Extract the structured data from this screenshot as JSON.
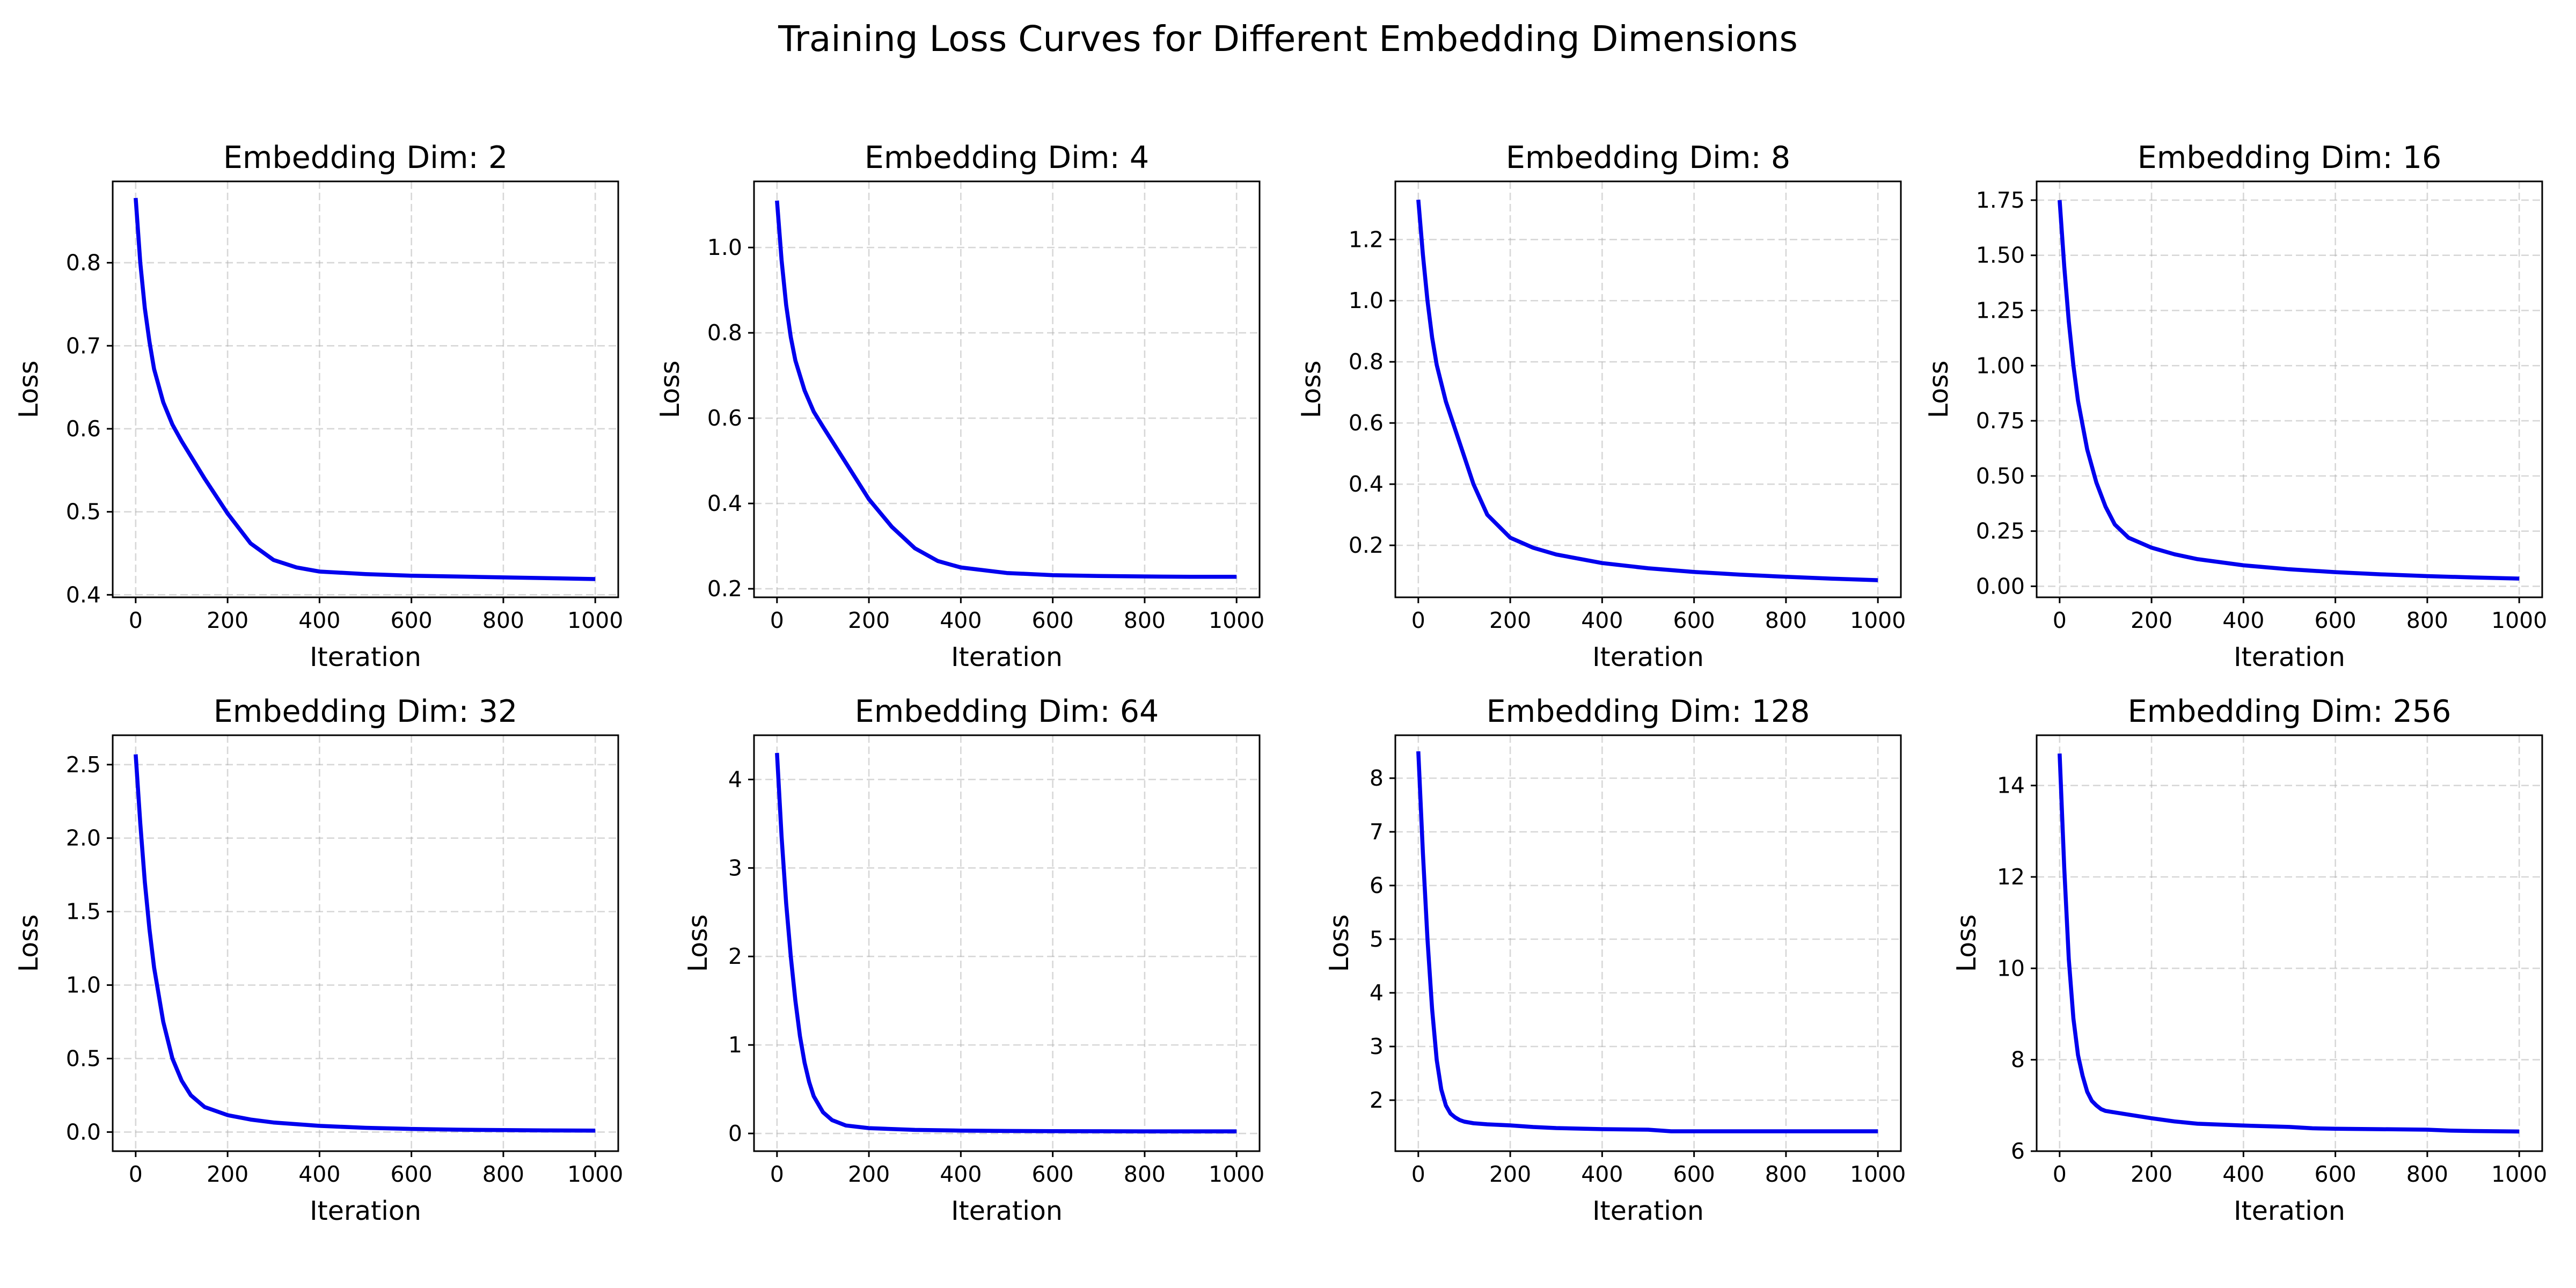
{
  "figure": {
    "title": "Training Loss Curves for Different Embedding Dimensions",
    "line_color": "#0000ee"
  },
  "chart_data": [
    {
      "type": "line",
      "title": "Embedding Dim: 2",
      "xlabel": "Iteration",
      "ylabel": "Loss",
      "xlim": [
        -50,
        1050
      ],
      "ylim": [
        0.397,
        0.898
      ],
      "xticks": [
        0,
        200,
        400,
        600,
        800,
        1000
      ],
      "yticks": [
        0.4,
        0.5,
        0.6,
        0.7,
        0.8
      ],
      "ytick_labels": [
        "0.4",
        "0.5",
        "0.6",
        "0.7",
        "0.8"
      ],
      "grid": true,
      "series": [
        {
          "x": [
            0,
            10,
            20,
            30,
            40,
            60,
            80,
            100,
            150,
            200,
            250,
            300,
            350,
            400,
            500,
            600,
            700,
            800,
            900,
            1000
          ],
          "values": [
            0.878,
            0.8,
            0.745,
            0.705,
            0.672,
            0.632,
            0.605,
            0.585,
            0.54,
            0.498,
            0.462,
            0.442,
            0.433,
            0.428,
            0.425,
            0.423,
            0.422,
            0.421,
            0.42,
            0.419
          ]
        }
      ]
    },
    {
      "type": "line",
      "title": "Embedding Dim: 4",
      "xlabel": "Iteration",
      "ylabel": "Loss",
      "xlim": [
        -50,
        1050
      ],
      "ylim": [
        0.18,
        1.155
      ],
      "xticks": [
        0,
        200,
        400,
        600,
        800,
        1000
      ],
      "yticks": [
        0.2,
        0.4,
        0.6,
        0.8,
        1.0
      ],
      "ytick_labels": [
        "0.2",
        "0.4",
        "0.6",
        "0.8",
        "1.0"
      ],
      "grid": true,
      "series": [
        {
          "x": [
            0,
            10,
            20,
            30,
            40,
            60,
            80,
            100,
            150,
            200,
            250,
            300,
            350,
            400,
            500,
            600,
            700,
            800,
            900,
            1000
          ],
          "values": [
            1.11,
            0.97,
            0.865,
            0.79,
            0.735,
            0.665,
            0.615,
            0.58,
            0.495,
            0.41,
            0.345,
            0.295,
            0.265,
            0.25,
            0.237,
            0.232,
            0.23,
            0.229,
            0.228,
            0.228
          ]
        }
      ]
    },
    {
      "type": "line",
      "title": "Embedding Dim: 8",
      "xlabel": "Iteration",
      "ylabel": "Loss",
      "xlim": [
        -50,
        1050
      ],
      "ylim": [
        0.03,
        1.39
      ],
      "xticks": [
        0,
        200,
        400,
        600,
        800,
        1000
      ],
      "yticks": [
        0.2,
        0.4,
        0.6,
        0.8,
        1.0,
        1.2
      ],
      "ytick_labels": [
        "0.2",
        "0.4",
        "0.6",
        "0.8",
        "1.0",
        "1.2"
      ],
      "grid": true,
      "series": [
        {
          "x": [
            0,
            10,
            20,
            30,
            40,
            60,
            80,
            100,
            120,
            150,
            200,
            250,
            300,
            400,
            500,
            600,
            700,
            800,
            900,
            1000
          ],
          "values": [
            1.33,
            1.15,
            1.0,
            0.88,
            0.79,
            0.67,
            0.58,
            0.49,
            0.4,
            0.3,
            0.225,
            0.192,
            0.17,
            0.142,
            0.125,
            0.113,
            0.104,
            0.097,
            0.091,
            0.086
          ]
        }
      ]
    },
    {
      "type": "line",
      "title": "Embedding Dim: 16",
      "xlabel": "Iteration",
      "ylabel": "Loss",
      "xlim": [
        -50,
        1050
      ],
      "ylim": [
        -0.05,
        1.835
      ],
      "xticks": [
        0,
        200,
        400,
        600,
        800,
        1000
      ],
      "yticks": [
        0.0,
        0.25,
        0.5,
        0.75,
        1.0,
        1.25,
        1.5,
        1.75
      ],
      "ytick_labels": [
        "0.00",
        "0.25",
        "0.50",
        "0.75",
        "1.00",
        "1.25",
        "1.50",
        "1.75"
      ],
      "grid": true,
      "series": [
        {
          "x": [
            0,
            10,
            20,
            30,
            40,
            60,
            80,
            100,
            120,
            150,
            200,
            250,
            300,
            400,
            500,
            600,
            700,
            800,
            900,
            1000
          ],
          "values": [
            1.75,
            1.45,
            1.2,
            1.0,
            0.84,
            0.62,
            0.47,
            0.36,
            0.28,
            0.22,
            0.175,
            0.145,
            0.123,
            0.095,
            0.077,
            0.064,
            0.054,
            0.046,
            0.04,
            0.035
          ]
        }
      ]
    },
    {
      "type": "line",
      "title": "Embedding Dim: 32",
      "xlabel": "Iteration",
      "ylabel": "Loss",
      "xlim": [
        -50,
        1050
      ],
      "ylim": [
        -0.13,
        2.7
      ],
      "xticks": [
        0,
        200,
        400,
        600,
        800,
        1000
      ],
      "yticks": [
        0.0,
        0.5,
        1.0,
        1.5,
        2.0,
        2.5
      ],
      "ytick_labels": [
        "0.0",
        "0.5",
        "1.0",
        "1.5",
        "2.0",
        "2.5"
      ],
      "grid": true,
      "series": [
        {
          "x": [
            0,
            10,
            20,
            30,
            40,
            60,
            80,
            100,
            120,
            150,
            200,
            250,
            300,
            400,
            500,
            600,
            700,
            800,
            900,
            1000
          ],
          "values": [
            2.57,
            2.1,
            1.7,
            1.38,
            1.12,
            0.75,
            0.5,
            0.35,
            0.25,
            0.17,
            0.115,
            0.085,
            0.065,
            0.042,
            0.029,
            0.021,
            0.016,
            0.013,
            0.011,
            0.01
          ]
        }
      ]
    },
    {
      "type": "line",
      "title": "Embedding Dim: 64",
      "xlabel": "Iteration",
      "ylabel": "Loss",
      "xlim": [
        -50,
        1050
      ],
      "ylim": [
        -0.2,
        4.5
      ],
      "xticks": [
        0,
        200,
        400,
        600,
        800,
        1000
      ],
      "yticks": [
        0,
        1,
        2,
        3,
        4
      ],
      "ytick_labels": [
        "0",
        "1",
        "2",
        "3",
        "4"
      ],
      "grid": true,
      "series": [
        {
          "x": [
            0,
            10,
            20,
            30,
            40,
            50,
            60,
            70,
            80,
            100,
            120,
            150,
            200,
            300,
            400,
            500,
            600,
            700,
            800,
            900,
            1000
          ],
          "values": [
            4.3,
            3.35,
            2.6,
            2.0,
            1.5,
            1.1,
            0.8,
            0.58,
            0.42,
            0.24,
            0.15,
            0.09,
            0.06,
            0.04,
            0.032,
            0.028,
            0.026,
            0.025,
            0.024,
            0.024,
            0.024
          ]
        }
      ]
    },
    {
      "type": "line",
      "title": "Embedding Dim: 128",
      "xlabel": "Iteration",
      "ylabel": "Loss",
      "xlim": [
        -50,
        1050
      ],
      "ylim": [
        1.05,
        8.8
      ],
      "xticks": [
        0,
        200,
        400,
        600,
        800,
        1000
      ],
      "yticks": [
        2,
        3,
        4,
        5,
        6,
        7,
        8
      ],
      "ytick_labels": [
        "2",
        "3",
        "4",
        "5",
        "6",
        "7",
        "8"
      ],
      "grid": true,
      "series": [
        {
          "x": [
            0,
            10,
            20,
            30,
            40,
            50,
            60,
            70,
            80,
            90,
            100,
            120,
            150,
            200,
            250,
            300,
            400,
            500,
            550,
            600,
            700,
            800,
            900,
            1000
          ],
          "values": [
            8.5,
            6.6,
            5.0,
            3.7,
            2.75,
            2.2,
            1.9,
            1.75,
            1.68,
            1.63,
            1.6,
            1.57,
            1.55,
            1.53,
            1.5,
            1.48,
            1.46,
            1.45,
            1.42,
            1.42,
            1.42,
            1.42,
            1.42,
            1.42
          ]
        }
      ]
    },
    {
      "type": "line",
      "title": "Embedding Dim: 256",
      "xlabel": "Iteration",
      "ylabel": "Loss",
      "xlim": [
        -50,
        1050
      ],
      "ylim": [
        6.0,
        15.1
      ],
      "xticks": [
        0,
        200,
        400,
        600,
        800,
        1000
      ],
      "yticks": [
        6,
        8,
        10,
        12,
        14
      ],
      "ytick_labels": [
        "6",
        "8",
        "10",
        "12",
        "14"
      ],
      "grid": true,
      "series": [
        {
          "x": [
            0,
            10,
            20,
            30,
            40,
            50,
            60,
            70,
            80,
            90,
            100,
            150,
            200,
            250,
            300,
            400,
            500,
            550,
            600,
            700,
            800,
            850,
            900,
            1000
          ],
          "values": [
            14.7,
            12.2,
            10.2,
            8.9,
            8.1,
            7.65,
            7.3,
            7.1,
            7.0,
            6.92,
            6.88,
            6.8,
            6.72,
            6.65,
            6.6,
            6.56,
            6.53,
            6.5,
            6.49,
            6.48,
            6.47,
            6.45,
            6.44,
            6.43
          ]
        }
      ]
    }
  ]
}
